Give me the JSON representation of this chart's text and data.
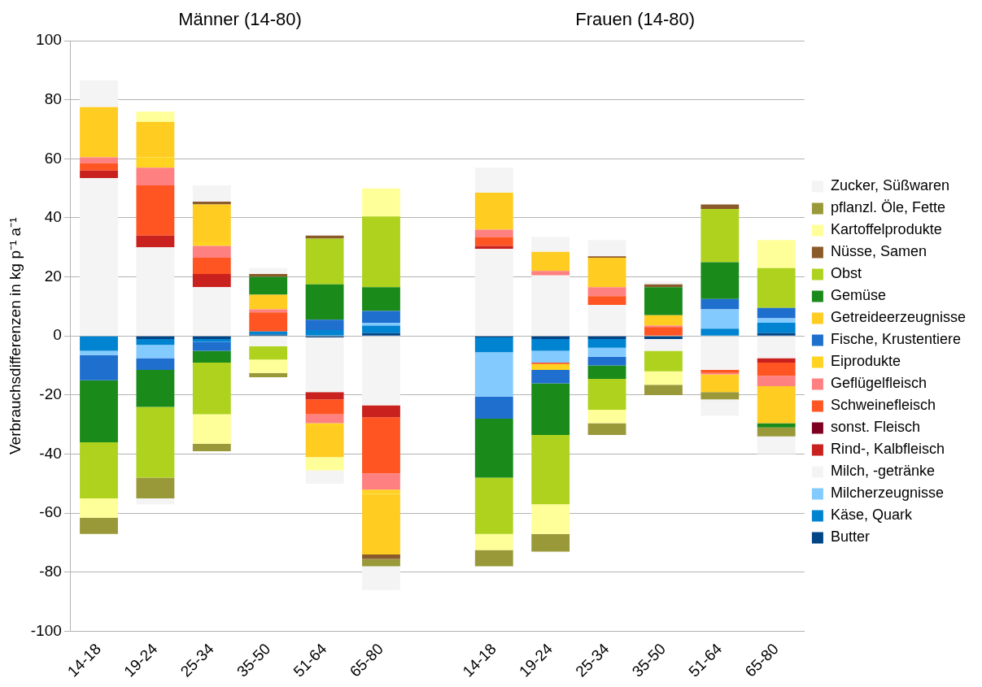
{
  "chart_data": {
    "type": "bar",
    "stacked": true,
    "ylabel": "Verbrauchsdifferenzen in kg p⁻¹ a⁻¹",
    "annotations": [
      "Männer (14-80)",
      "Frauen (14-80)"
    ],
    "categories": [
      "14-18",
      "19-24",
      "25-34",
      "35-50",
      "51-64",
      "65-80",
      null,
      "14-18",
      "19-24",
      "25-34",
      "35-50",
      "51-64",
      "65-80"
    ],
    "series": [
      {
        "name": "Butter",
        "color": "#004586",
        "values": [
          null,
          -1,
          -1,
          0.5,
          -0.5,
          1,
          null,
          -0.5,
          -1,
          -1,
          -1,
          null,
          1
        ]
      },
      {
        "name": "Käse, Quark",
        "color": "#0084d1",
        "values": [
          -5,
          -2,
          -1,
          1,
          2,
          2.5,
          null,
          -5,
          -4,
          -3,
          null,
          2.5,
          3.5
        ]
      },
      {
        "name": "Milcherzeugnisse",
        "color": "#83caff",
        "values": [
          -1.5,
          -4.5,
          null,
          null,
          null,
          1,
          null,
          -15,
          -4,
          -3,
          null,
          6.5,
          1.5
        ]
      },
      {
        "name": "Milch, -getränke",
        "color": "#f4f4f4",
        "values": [
          53.5,
          30,
          16.5,
          -3.5,
          -18.5,
          -23.5,
          null,
          29.5,
          20.5,
          10.5,
          -4,
          -11.5,
          -7.5
        ]
      },
      {
        "name": "Rind-, Kalbfleisch",
        "color": "#c9211e",
        "values": [
          2.5,
          4,
          4.5,
          null,
          -2.5,
          -4,
          null,
          1,
          null,
          null,
          null,
          null,
          -1.5
        ]
      },
      {
        "name": "sonst. Fleisch",
        "color": "#7e0021",
        "values": [
          null,
          null,
          null,
          null,
          null,
          null,
          null,
          null,
          null,
          null,
          null,
          null,
          null
        ]
      },
      {
        "name": "Schweinefleisch",
        "color": "#ff5522",
        "values": [
          2.5,
          17,
          5.5,
          6.5,
          -5,
          -19,
          null,
          3,
          -0.5,
          3,
          3,
          -1,
          -4.5
        ]
      },
      {
        "name": "Geflügelfleisch",
        "color": "#ff8080",
        "values": [
          2,
          6,
          4,
          1,
          -3,
          -5.5,
          null,
          2.5,
          1.5,
          3,
          0.5,
          -0.5,
          -3.5
        ]
      },
      {
        "name": "Eiprodukte",
        "color": "#ffd320",
        "values": [
          null,
          3.5,
          1.5,
          null,
          -1,
          -1.5,
          null,
          null,
          -2,
          null,
          null,
          null,
          null
        ]
      },
      {
        "name": "Fische, Krustentiere",
        "color": "#1f6fcf",
        "values": [
          -8.5,
          -4,
          -3,
          null,
          3.5,
          4,
          null,
          -7.5,
          -4.5,
          -3,
          null,
          3.5,
          3.5
        ]
      },
      {
        "name": "Getreideerzeugnisse",
        "color": "#ffcc22",
        "values": [
          17,
          12,
          12.5,
          5,
          -10.5,
          -20.5,
          null,
          12.5,
          6.5,
          10,
          3.5,
          -6,
          -12.5
        ]
      },
      {
        "name": "Gemüse",
        "color": "#1a8a1a",
        "values": [
          -21,
          -12.5,
          -4,
          6,
          12,
          8,
          null,
          -20,
          -17.5,
          -4.5,
          9.5,
          12.5,
          -1.5
        ]
      },
      {
        "name": "Obst",
        "color": "#aed21e",
        "values": [
          -19,
          -24,
          -17.5,
          -4.5,
          15.5,
          24,
          null,
          -19,
          -23.5,
          -10.5,
          -7,
          18,
          13.5
        ]
      },
      {
        "name": "Nüsse, Samen",
        "color": "#8b5a2b",
        "values": [
          null,
          null,
          1,
          1,
          1,
          -1.5,
          null,
          null,
          null,
          0.5,
          1,
          1.5,
          null
        ]
      },
      {
        "name": "Kartoffelprodukte",
        "color": "#ffff99",
        "values": [
          -6.5,
          3.5,
          -10,
          -4.5,
          -4.5,
          9.5,
          null,
          -5.5,
          -10,
          -4.5,
          -4.5,
          null,
          9.5
        ]
      },
      {
        "name": "pflanzl. Öle, Fette",
        "color": "#99993a",
        "values": [
          -5.5,
          -7,
          -2.5,
          -1.5,
          null,
          -2.5,
          null,
          -5.5,
          -6,
          -4,
          -3.5,
          -2.5,
          -3
        ]
      },
      {
        "name": "Zucker, Süßwaren",
        "color": "#f4f4f4",
        "values": [
          9,
          -2,
          5.5,
          2,
          -4.5,
          -8,
          null,
          8.5,
          5,
          5.5,
          1,
          -5.5,
          -6
        ]
      }
    ],
    "ylim": [
      -100,
      100
    ],
    "yticks": [
      -100,
      -80,
      -60,
      -40,
      -20,
      0,
      20,
      40,
      60,
      80,
      100
    ],
    "grid": "y",
    "legend": "right"
  }
}
